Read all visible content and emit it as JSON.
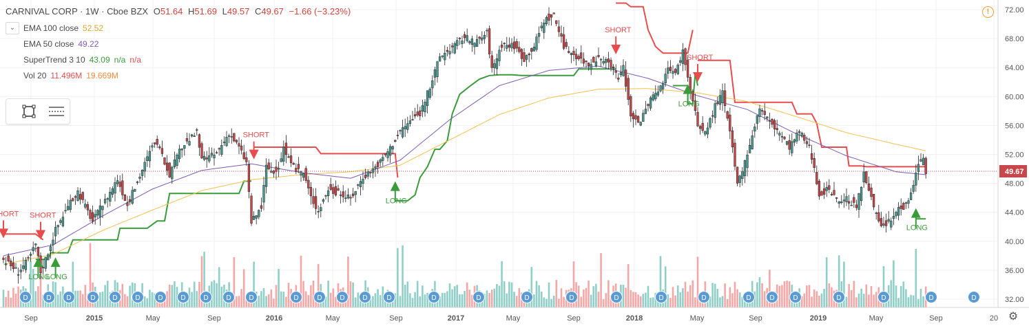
{
  "header": {
    "symbol": "CARNIVAL CORP · 1W · Cboe BZX",
    "open_label": "O",
    "open": "51.64",
    "high_label": "H",
    "high": "51.69",
    "low_label": "L",
    "low": "49.57",
    "close_label": "C",
    "close": "49.67",
    "change": "−1.66 (−3.23%)"
  },
  "indicators": [
    {
      "name": "EMA 100 close",
      "values": [
        "52.52"
      ],
      "color": "#e8b52b"
    },
    {
      "name": "EMA 50 close",
      "values": [
        "49.22"
      ],
      "color": "#7c5bb3"
    },
    {
      "name": "SuperTrend 3 10",
      "values": [
        "43.09",
        "n/a",
        "n/a"
      ],
      "colors": [
        "#3a9b3a",
        "#3a9b3a",
        "#e05050"
      ]
    },
    {
      "name": "Vol 20",
      "values": [
        "11.496M",
        "19.669M"
      ],
      "colors": [
        "#e05050",
        "#f08c3c"
      ]
    }
  ],
  "icons": {
    "collapse": "chevron-down-icon",
    "rect_tool": "rectangle-icon",
    "lines_tool": "lines-icon",
    "warning": "warning-icon",
    "settings": "gear-icon"
  },
  "chart_data": {
    "type": "candlestick",
    "symbol": "CARNIVAL CORP",
    "interval": "1W",
    "y_range": [
      31,
      74
    ],
    "y_ticks": [
      "72.00",
      "68.00",
      "64.00",
      "60.00",
      "56.00",
      "52.00",
      "48.00",
      "44.00",
      "40.00",
      "36.00",
      "32.00"
    ],
    "last_price_label": "49.67",
    "x_tick_labels": [
      "Sep",
      "2015",
      "May",
      "Sep",
      "2016",
      "May",
      "Sep",
      "2017",
      "May",
      "Sep",
      "2018",
      "May",
      "Sep",
      "2019",
      "May",
      "Sep",
      "20"
    ],
    "colors": {
      "up": "#4a9a92",
      "down": "#c8474a",
      "ema100": "#f2c14e",
      "ema50": "#7c5bb3",
      "supertrend_up": "#3a9b3a",
      "supertrend_down": "#e84c4c",
      "vol_up": "#8fcfc8",
      "vol_down": "#f4a7a7"
    },
    "close_path": [
      [
        0,
        37.5
      ],
      [
        6,
        35.8
      ],
      [
        10,
        37.4
      ],
      [
        13,
        39.6
      ],
      [
        15,
        35.8
      ],
      [
        18,
        38.5
      ],
      [
        21,
        41.6
      ],
      [
        25,
        44.2
      ],
      [
        30,
        46.9
      ],
      [
        33,
        44.8
      ],
      [
        36,
        42.8
      ],
      [
        41,
        45.6
      ],
      [
        46,
        48.6
      ],
      [
        50,
        45.0
      ],
      [
        56,
        49.9
      ],
      [
        61,
        53.8
      ],
      [
        63,
        52.5
      ],
      [
        67,
        49.3
      ],
      [
        72,
        53.1
      ],
      [
        78,
        55.0
      ],
      [
        80,
        51.2
      ],
      [
        86,
        52.1
      ],
      [
        91,
        55.0
      ],
      [
        95,
        53.0
      ],
      [
        98,
        50.9
      ],
      [
        100,
        42.6
      ],
      [
        104,
        44.7
      ],
      [
        106,
        50.3
      ],
      [
        110,
        49.2
      ],
      [
        113,
        52.9
      ],
      [
        116,
        50.4
      ],
      [
        121,
        49.4
      ],
      [
        124,
        46.1
      ],
      [
        127,
        44.2
      ],
      [
        131,
        47.2
      ],
      [
        135,
        46.6
      ],
      [
        140,
        45.9
      ],
      [
        145,
        48.9
      ],
      [
        149,
        50.0
      ],
      [
        152,
        51.0
      ],
      [
        156,
        52.9
      ],
      [
        160,
        55.2
      ],
      [
        164,
        56.6
      ],
      [
        168,
        57.7
      ],
      [
        172,
        61.3
      ],
      [
        176,
        65.5
      ],
      [
        181,
        66.8
      ],
      [
        186,
        68.3
      ],
      [
        190,
        67.3
      ],
      [
        195,
        68.8
      ],
      [
        197,
        63.7
      ],
      [
        201,
        67.2
      ],
      [
        206,
        67.0
      ],
      [
        210,
        65.2
      ],
      [
        214,
        67.0
      ],
      [
        218,
        70.5
      ],
      [
        222,
        71.2
      ],
      [
        226,
        66.8
      ],
      [
        232,
        65.4
      ],
      [
        236,
        64.4
      ],
      [
        239,
        65.2
      ],
      [
        244,
        64.6
      ],
      [
        248,
        62.5
      ],
      [
        250,
        64.0
      ],
      [
        253,
        57.4
      ],
      [
        257,
        56.6
      ],
      [
        261,
        59.7
      ],
      [
        266,
        61.4
      ],
      [
        268,
        64.3
      ],
      [
        271,
        63.1
      ],
      [
        274,
        66.4
      ],
      [
        277,
        60.9
      ],
      [
        280,
        56.0
      ],
      [
        283,
        54.9
      ],
      [
        287,
        58.7
      ],
      [
        290,
        60.5
      ],
      [
        292,
        56.8
      ],
      [
        294,
        52.9
      ],
      [
        296,
        47.8
      ],
      [
        298,
        49.4
      ],
      [
        302,
        54.8
      ],
      [
        305,
        58.5
      ],
      [
        309,
        56.5
      ],
      [
        313,
        55.0
      ],
      [
        317,
        53.0
      ],
      [
        321,
        55.2
      ],
      [
        325,
        52.9
      ],
      [
        327,
        50.2
      ],
      [
        329,
        46.5
      ],
      [
        332,
        47.1
      ],
      [
        336,
        45.6
      ],
      [
        340,
        45.9
      ],
      [
        344,
        44.7
      ],
      [
        347,
        49.3
      ],
      [
        349,
        47.2
      ],
      [
        351,
        44.3
      ],
      [
        354,
        42.0
      ],
      [
        358,
        42.9
      ],
      [
        361,
        44.6
      ],
      [
        364,
        44.9
      ],
      [
        367,
        48.0
      ],
      [
        369,
        50.5
      ],
      [
        371,
        51.3
      ],
      [
        372,
        49.7
      ]
    ],
    "ema100_path": [
      [
        0,
        36.8
      ],
      [
        20,
        38.2
      ],
      [
        40,
        41.5
      ],
      [
        60,
        44.3
      ],
      [
        80,
        47.0
      ],
      [
        100,
        48.5
      ],
      [
        120,
        49.2
      ],
      [
        140,
        49.6
      ],
      [
        160,
        50.5
      ],
      [
        180,
        54.0
      ],
      [
        200,
        57.5
      ],
      [
        220,
        59.8
      ],
      [
        240,
        61.0
      ],
      [
        260,
        61.1
      ],
      [
        280,
        60.5
      ],
      [
        300,
        59.3
      ],
      [
        320,
        57.2
      ],
      [
        340,
        55.0
      ],
      [
        360,
        53.4
      ],
      [
        372,
        52.5
      ]
    ],
    "ema50_path": [
      [
        0,
        38.0
      ],
      [
        20,
        39.5
      ],
      [
        40,
        43.5
      ],
      [
        60,
        47.2
      ],
      [
        80,
        49.8
      ],
      [
        100,
        50.7
      ],
      [
        120,
        49.5
      ],
      [
        140,
        48.7
      ],
      [
        160,
        51.2
      ],
      [
        180,
        56.8
      ],
      [
        200,
        61.5
      ],
      [
        220,
        63.6
      ],
      [
        240,
        64.2
      ],
      [
        260,
        62.5
      ],
      [
        280,
        60.1
      ],
      [
        300,
        58.2
      ],
      [
        320,
        54.8
      ],
      [
        340,
        51.8
      ],
      [
        360,
        49.6
      ],
      [
        372,
        49.2
      ]
    ],
    "supertrend": [
      {
        "trend": "down",
        "points": [
          [
            0,
            41.0
          ],
          [
            13,
            41.0
          ],
          [
            16,
            40.2
          ]
        ]
      },
      {
        "trend": "up",
        "points": [
          [
            13,
            37.5
          ],
          [
            18,
            37.5
          ],
          [
            19,
            38.4
          ],
          [
            26,
            38.4
          ],
          [
            28,
            40.2
          ],
          [
            34,
            40.2
          ],
          [
            36,
            40.2
          ],
          [
            46,
            40.2
          ],
          [
            47,
            41.8
          ],
          [
            58,
            41.8
          ],
          [
            62,
            42.8
          ],
          [
            65,
            42.8
          ],
          [
            67,
            46.6
          ],
          [
            72,
            46.6
          ],
          [
            74,
            46.6
          ],
          [
            95,
            46.6
          ],
          [
            97,
            48.3
          ],
          [
            100,
            48.3
          ]
        ]
      },
      {
        "trend": "down",
        "points": [
          [
            101,
            53.0
          ],
          [
            126,
            53.0
          ],
          [
            128,
            52.1
          ],
          [
            158,
            52.1
          ],
          [
            159,
            48.8
          ]
        ]
      },
      {
        "trend": "up",
        "points": [
          [
            158,
            45.6
          ],
          [
            163,
            45.6
          ],
          [
            166,
            46.4
          ],
          [
            168,
            48.8
          ],
          [
            171,
            50.3
          ],
          [
            174,
            52.7
          ],
          [
            176,
            52.7
          ],
          [
            179,
            53.9
          ],
          [
            181,
            57.6
          ],
          [
            184,
            60.3
          ],
          [
            188,
            61.4
          ],
          [
            192,
            62.4
          ],
          [
            196,
            62.9
          ],
          [
            200,
            63.0
          ],
          [
            205,
            63.0
          ],
          [
            209,
            62.9
          ],
          [
            212,
            62.9
          ],
          [
            230,
            62.9
          ],
          [
            232,
            63.8
          ],
          [
            247,
            63.8
          ]
        ]
      },
      {
        "trend": "down",
        "points": [
          [
            247,
            72.9
          ],
          [
            251,
            72.9
          ],
          [
            253,
            72.4
          ],
          [
            258,
            72.4
          ],
          [
            260,
            69.2
          ],
          [
            263,
            66.9
          ],
          [
            266,
            66.0
          ],
          [
            276,
            66.0
          ],
          [
            278,
            69.2
          ]
        ]
      },
      {
        "trend": "up",
        "points": [
          [
            270,
            61.5
          ],
          [
            276,
            61.5
          ],
          [
            276,
            59.0
          ],
          [
            278,
            59.0
          ],
          [
            279,
            63.2
          ],
          [
            280,
            61.5
          ]
        ]
      },
      {
        "trend": "down",
        "points": [
          [
            280,
            65.0
          ],
          [
            288,
            65.0
          ],
          [
            293,
            65.0
          ],
          [
            295,
            59.2
          ],
          [
            310,
            59.2
          ],
          [
            318,
            59.2
          ],
          [
            320,
            57.6
          ],
          [
            326,
            57.6
          ],
          [
            328,
            56.3
          ],
          [
            330,
            53.0
          ],
          [
            340,
            53.0
          ],
          [
            341,
            50.4
          ],
          [
            346,
            50.4
          ],
          [
            348,
            50.3
          ],
          [
            371,
            50.3
          ],
          [
            372,
            50.3
          ]
        ]
      },
      {
        "trend": "up",
        "points": [
          [
            368,
            43.1
          ],
          [
            372,
            43.1
          ]
        ]
      }
    ],
    "signals": [
      {
        "label": "SHORT",
        "type": "short",
        "i": 0,
        "y": 40.8
      },
      {
        "label": "SHORT",
        "type": "short",
        "i": 15,
        "y": 40.6
      },
      {
        "label": "LONG",
        "type": "long",
        "i": 14,
        "y": 37.4
      },
      {
        "label": "LONG",
        "type": "long",
        "i": 21,
        "y": 37.4
      },
      {
        "label": "SHORT",
        "type": "short",
        "i": 101,
        "y": 51.7
      },
      {
        "label": "LONG",
        "type": "long",
        "i": 158,
        "y": 47.9
      },
      {
        "label": "SHORT",
        "type": "short",
        "i": 247,
        "y": 66.2
      },
      {
        "label": "LONG",
        "type": "long",
        "i": 276,
        "y": 61.3
      },
      {
        "label": "SHORT",
        "type": "short",
        "i": 280,
        "y": 62.4
      },
      {
        "label": "LONG",
        "type": "long",
        "i": 368,
        "y": 44.2
      }
    ],
    "dividend_marker_label": "D",
    "dividend_markers": 22
  }
}
